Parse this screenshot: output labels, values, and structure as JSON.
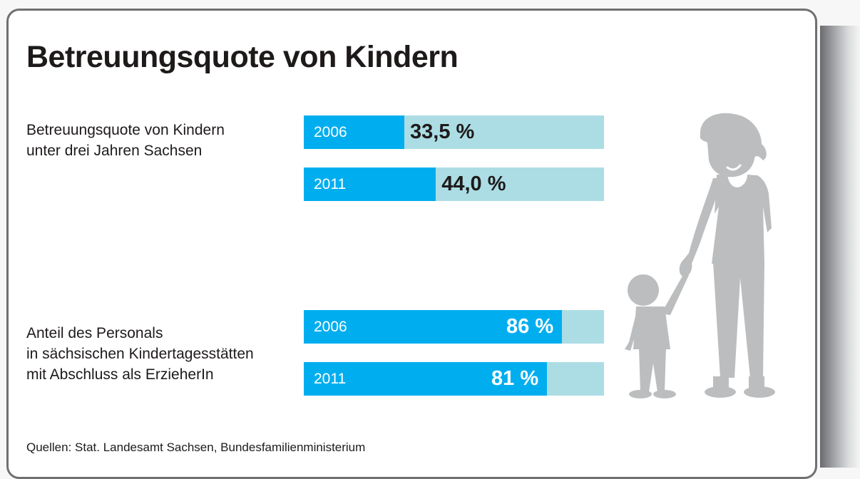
{
  "chart_data": {
    "type": "bar",
    "orientation": "horizontal",
    "title": "Betreuungsquote von Kindern",
    "value_unit": "%",
    "xlim": [
      0,
      100
    ],
    "groups": [
      {
        "label_lines": [
          "Betreuungsquote von Kindern",
          "unter drei Jahren Sachsen"
        ],
        "bars": [
          {
            "category": "2006",
            "value": 33.5,
            "label": "33,5 %",
            "label_position": "outside"
          },
          {
            "category": "2011",
            "value": 44.0,
            "label": "44,0 %",
            "label_position": "outside"
          }
        ]
      },
      {
        "label_lines": [
          "Anteil des Personals",
          "in sächsischen Kindertagesstätten",
          "mit Abschluss als ErzieherIn"
        ],
        "bars": [
          {
            "category": "2006",
            "value": 86,
            "label": "86 %",
            "label_position": "inside"
          },
          {
            "category": "2011",
            "value": 81,
            "label": "81 %",
            "label_position": "inside"
          }
        ]
      }
    ],
    "source": "Quellen: Stat. Landesamt Sachsen, Bundesfamilienministerium",
    "colors": {
      "fill": "#00aeef",
      "track": "#acdde4",
      "illustration": "#bcbdbf"
    }
  },
  "illustration": {
    "icon": "adult-and-child-icon"
  }
}
